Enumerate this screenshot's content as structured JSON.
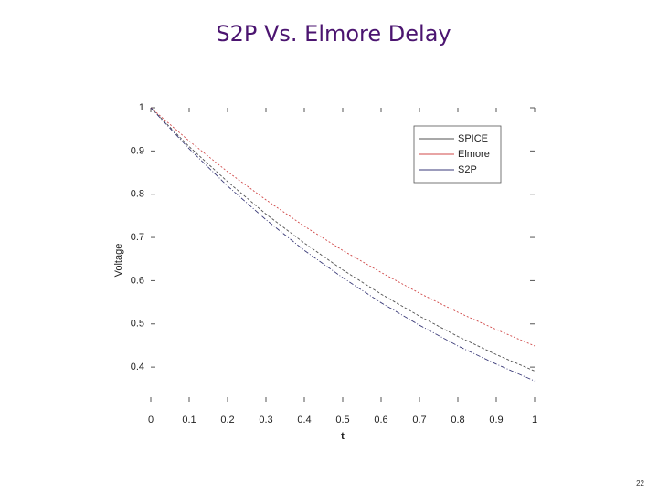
{
  "chart_data": {
    "type": "line",
    "title": "S2P Vs. Elmore Delay",
    "x_label": "t",
    "y_label": "Voltage",
    "x": [
      0,
      0.1,
      0.2,
      0.3,
      0.4,
      0.5,
      0.6,
      0.7,
      0.8,
      0.9,
      1
    ],
    "series": [
      {
        "name": "SPICE",
        "color": "#505050",
        "values": [
          1,
          0.91,
          0.829,
          0.754,
          0.687,
          0.625,
          0.569,
          0.518,
          0.471,
          0.429,
          0.391
        ]
      },
      {
        "name": "Elmore",
        "color": "#d04848",
        "values": [
          1,
          0.923,
          0.852,
          0.787,
          0.726,
          0.67,
          0.619,
          0.571,
          0.527,
          0.487,
          0.449
        ]
      },
      {
        "name": "S2P",
        "color": "#3a3a78",
        "values": [
          1,
          0.905,
          0.819,
          0.741,
          0.67,
          0.607,
          0.549,
          0.497,
          0.449,
          0.407,
          0.368
        ]
      }
    ],
    "xlim": [
      0,
      1
    ],
    "ylim": [
      0.32,
      1
    ],
    "xticks": [
      0,
      0.1,
      0.2,
      0.3,
      0.4,
      0.5,
      0.6,
      0.7,
      0.8,
      0.9,
      1
    ],
    "yticks": [
      0.4,
      0.5,
      0.6,
      0.7,
      0.8,
      0.9,
      1
    ],
    "legend": "upper right"
  },
  "page_number": "22"
}
